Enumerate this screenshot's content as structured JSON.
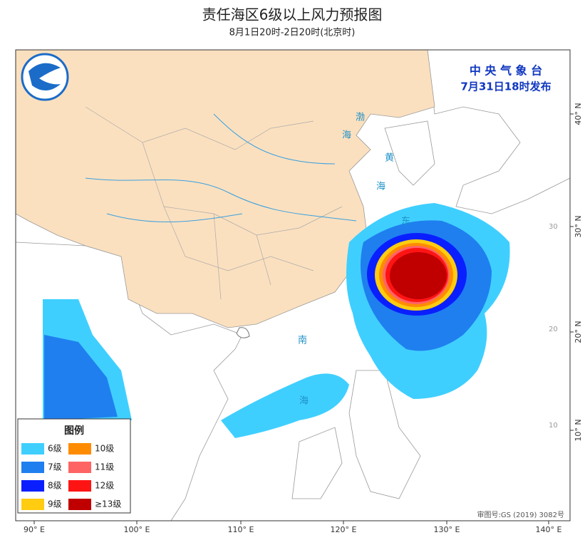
{
  "header": {
    "title": "责任海区6级以上风力预报图",
    "subtitle": "8月1日20时-2日20时(北京时)"
  },
  "issuer": {
    "name": "中 央 气 象 台",
    "time": "7月31日18时发布"
  },
  "legend": {
    "title": "图例",
    "items": [
      {
        "label": "6级",
        "color": "#3fcfff"
      },
      {
        "label": "7级",
        "color": "#1f7fef"
      },
      {
        "label": "8级",
        "color": "#0a1fff"
      },
      {
        "label": "9级",
        "color": "#ffcc10"
      },
      {
        "label": "10级",
        "color": "#ff8c00"
      },
      {
        "label": "11级",
        "color": "#ff6464"
      },
      {
        "label": "12级",
        "color": "#ff1414"
      },
      {
        "label": "≥13级",
        "color": "#c00000"
      }
    ]
  },
  "axes": {
    "longitude": [
      "90° E",
      "100° E",
      "110° E",
      "120° E",
      "130° E",
      "140° E"
    ],
    "latitude": [
      "40° N",
      "30° N",
      "20° N",
      "10° N"
    ],
    "inner_latitude": [
      "30",
      "20",
      "10"
    ]
  },
  "sea_labels": [
    "渤",
    "海",
    "黄",
    "海",
    "东",
    "南",
    "海"
  ],
  "approval": "审图号:GS (2019) 3082号"
}
